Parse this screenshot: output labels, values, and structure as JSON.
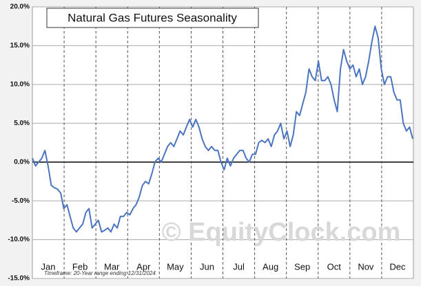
{
  "chart_data": {
    "type": "line",
    "title": "Natural Gas Futures Seasonality",
    "footnote": "Timeframe: 20-Year range ending 12/31/2024",
    "watermark": "© EquityClock.com",
    "x_labels": [
      "Jan",
      "Feb",
      "Mar",
      "Apr",
      "May",
      "Jun",
      "Jul",
      "Aug",
      "Sep",
      "Oct",
      "Nov",
      "Dec"
    ],
    "series": [
      {
        "name": "Natural Gas Futures",
        "color": "#4a74c0",
        "values": [
          0.5,
          -0.5,
          0,
          0.5,
          1.5,
          -0.5,
          -3,
          -3.3,
          -3.5,
          -4,
          -6,
          -5.5,
          -7,
          -8.5,
          -9,
          -8.5,
          -8,
          -6.5,
          -6,
          -8.5,
          -8,
          -7.5,
          -9,
          -8.8,
          -8.5,
          -9,
          -8,
          -8.5,
          -7,
          -7,
          -6.5,
          -6.8,
          -6,
          -5.5,
          -4.5,
          -3,
          -2.5,
          -2.8,
          -1.5,
          0,
          0.5,
          0,
          1,
          2,
          2.5,
          2,
          3,
          4,
          3.5,
          4.5,
          5.5,
          4.5,
          5.5,
          4.5,
          3,
          2,
          1.5,
          2,
          1.5,
          1.5,
          0,
          -1,
          0.5,
          -0.5,
          0.5,
          1,
          1.5,
          1.5,
          0.5,
          0,
          1,
          1,
          2.5,
          2.8,
          2.5,
          3,
          2,
          3.5,
          4,
          5,
          3,
          4,
          2,
          3.5,
          6.5,
          6,
          7.5,
          9,
          12,
          11,
          10.5,
          13,
          10.5,
          10.5,
          11,
          10,
          8,
          6.5,
          12,
          14.5,
          13,
          12,
          12.5,
          11,
          12,
          10,
          11,
          13,
          15.5,
          17.5,
          16,
          12,
          10,
          11,
          11,
          9,
          8,
          8,
          5,
          4,
          4.5,
          3
        ]
      }
    ],
    "ylim": [
      -15,
      20
    ],
    "yticks": [
      {
        "value": -15,
        "label": "-15.0%"
      },
      {
        "value": -10,
        "label": "-10.0%"
      },
      {
        "value": -5,
        "label": "-5.0%"
      },
      {
        "value": 0,
        "label": "0.0%"
      },
      {
        "value": 5,
        "label": "5.0%"
      },
      {
        "value": 10,
        "label": "10.0%"
      },
      {
        "value": 15,
        "label": "15.0%"
      },
      {
        "value": 20,
        "label": "20.0%"
      }
    ],
    "grid": true
  }
}
